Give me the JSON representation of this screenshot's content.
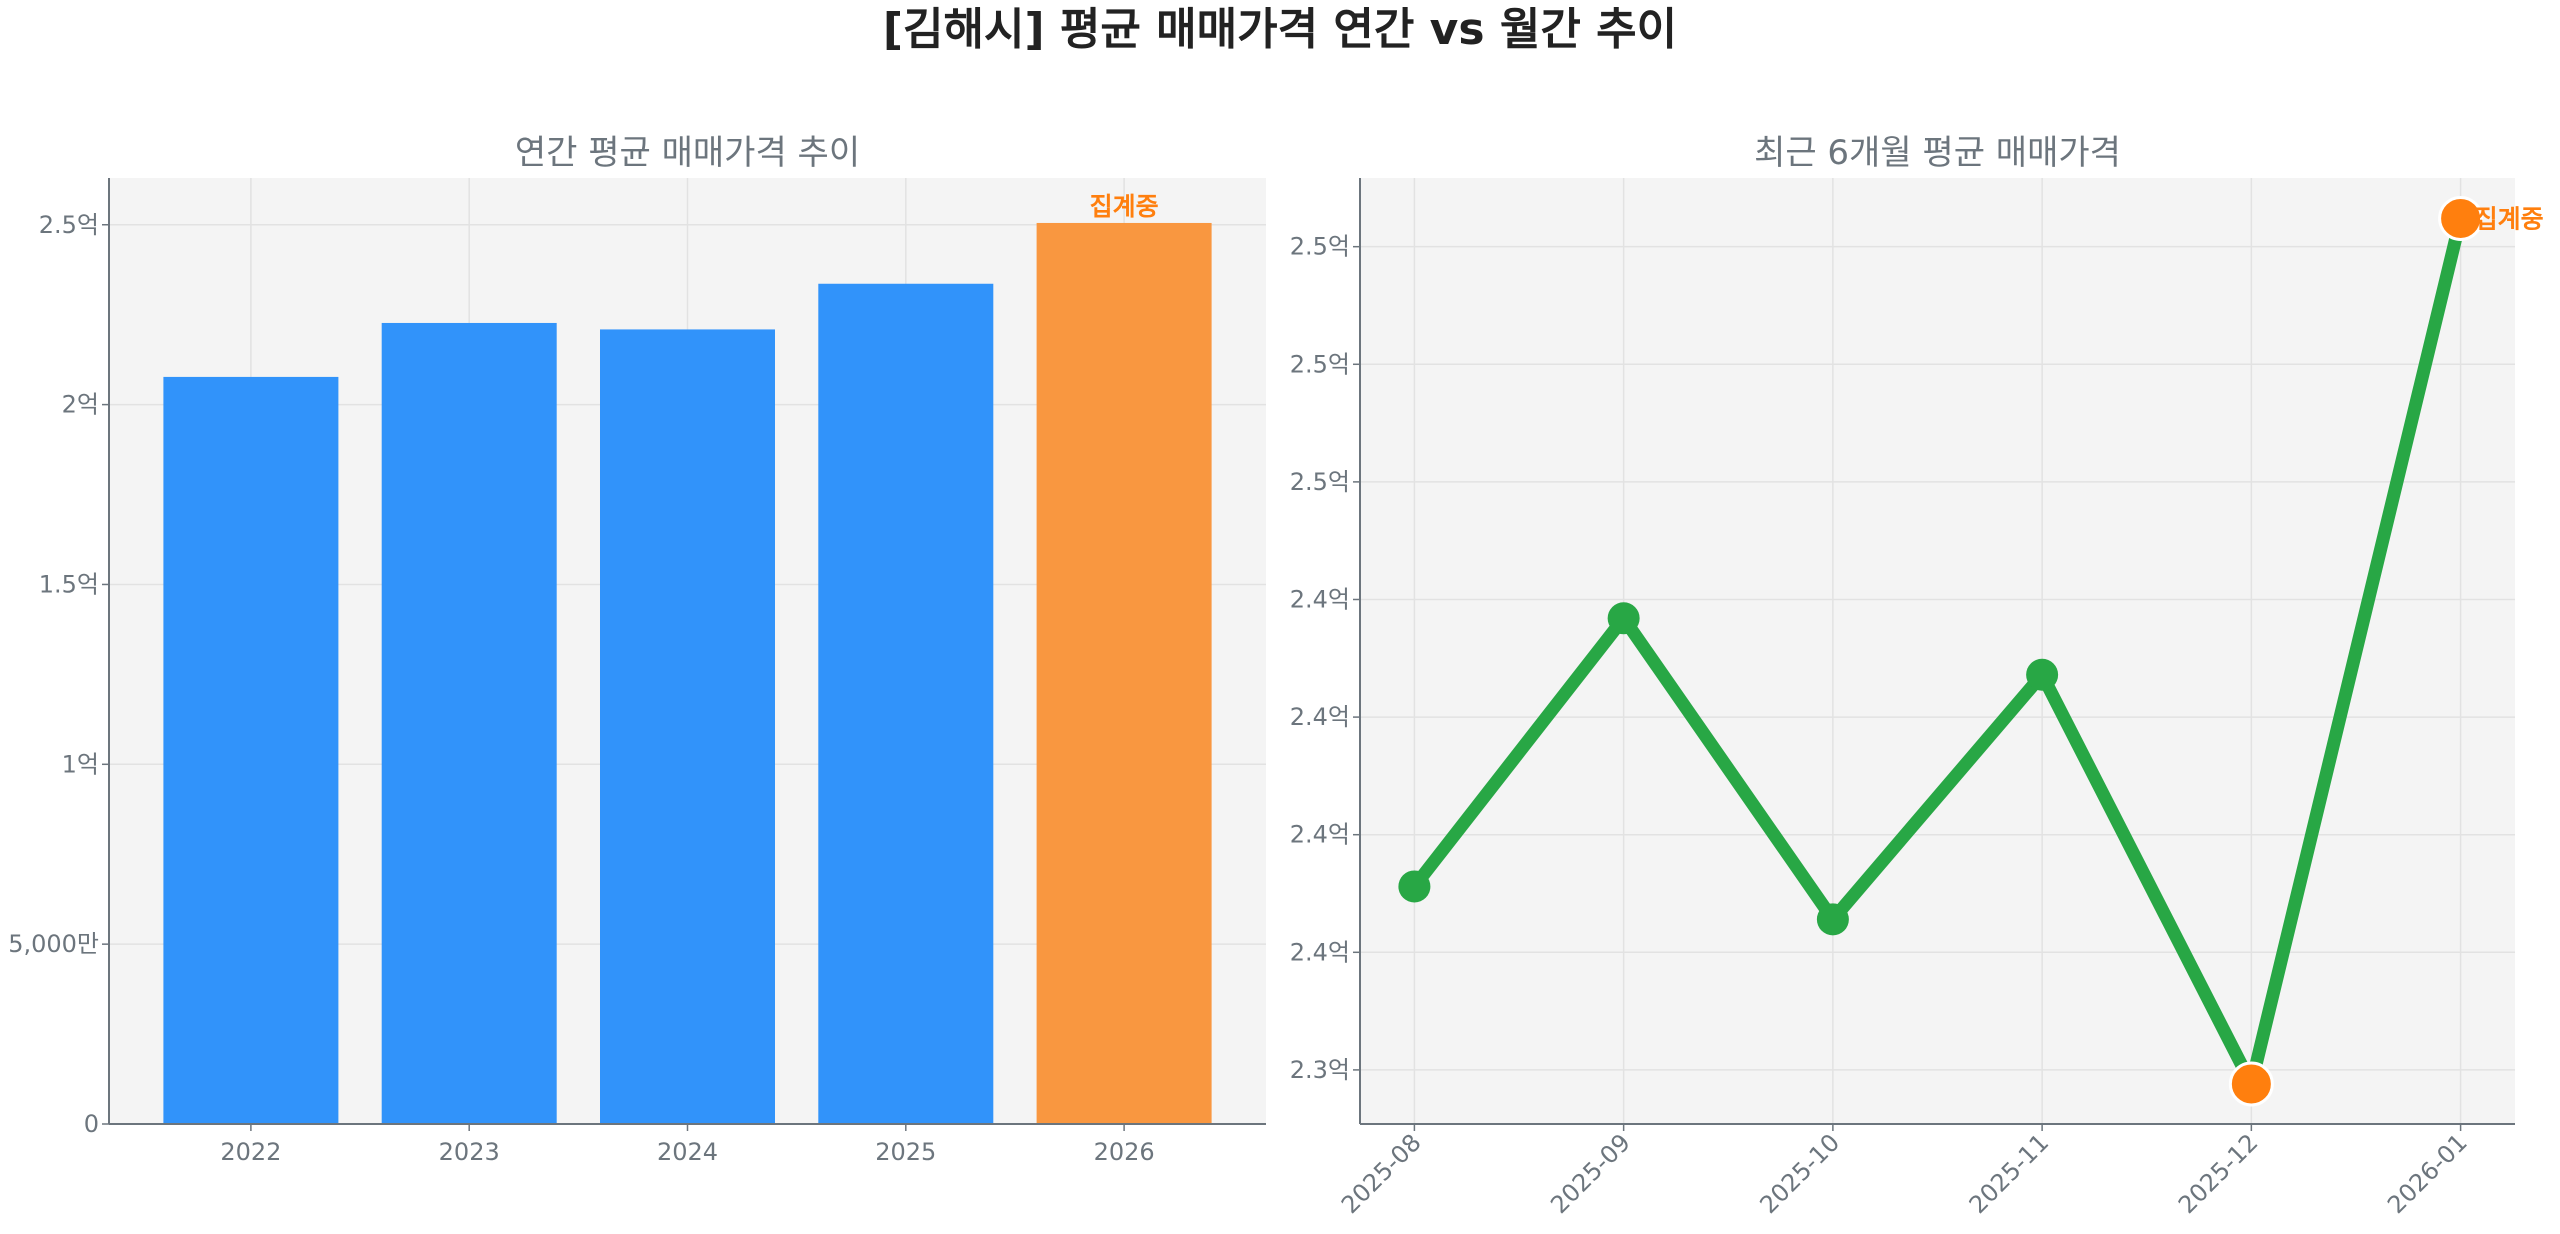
{
  "title": "[김해시] 평균 매매가격 연간 vs 월간 추이",
  "chart_data": [
    {
      "type": "bar",
      "title": "연간 평균 매매가격 추이",
      "xlabel": "",
      "ylabel": "",
      "categories": [
        "2022",
        "2023",
        "2024",
        "2025",
        "2026"
      ],
      "values": [
        2.077,
        2.227,
        2.209,
        2.336,
        2.505
      ],
      "unit": "억",
      "ylim": [
        0,
        2.63
      ],
      "yticks": [
        0,
        0.5,
        1,
        1.5,
        2,
        2.5
      ],
      "ytick_labels": [
        "0",
        "5,000만",
        "1억",
        "1.5억",
        "2억",
        "2.5억"
      ],
      "grid": true,
      "colors": {
        "complete": "#3193fa",
        "partial": "#f99740"
      },
      "partial_index": 4,
      "annotation": "집계중"
    },
    {
      "type": "line",
      "title": "최근 6개월 평균 매매가격",
      "xlabel": "",
      "ylabel": "",
      "categories": [
        "2025-08",
        "2025-09",
        "2025-10",
        "2025-11",
        "2025-12",
        "2026-01"
      ],
      "values": [
        2.364,
        2.421,
        2.357,
        2.409,
        2.322,
        2.506
      ],
      "unit": "억",
      "ylim": [
        2.3135,
        2.5146
      ],
      "yticks": [
        2.325,
        2.35,
        2.375,
        2.4,
        2.425,
        2.45,
        2.475,
        2.5
      ],
      "ytick_labels": [
        "2.3억",
        "2.4억",
        "2.4억",
        "2.4억",
        "2.4억",
        "2.5억",
        "2.5억",
        "2.5억"
      ],
      "grid": true,
      "colors": {
        "line": "#28a745",
        "highlight": "#ff7f0e"
      },
      "highlight_indices": [
        4,
        5
      ],
      "annotation": "집계중"
    }
  ]
}
